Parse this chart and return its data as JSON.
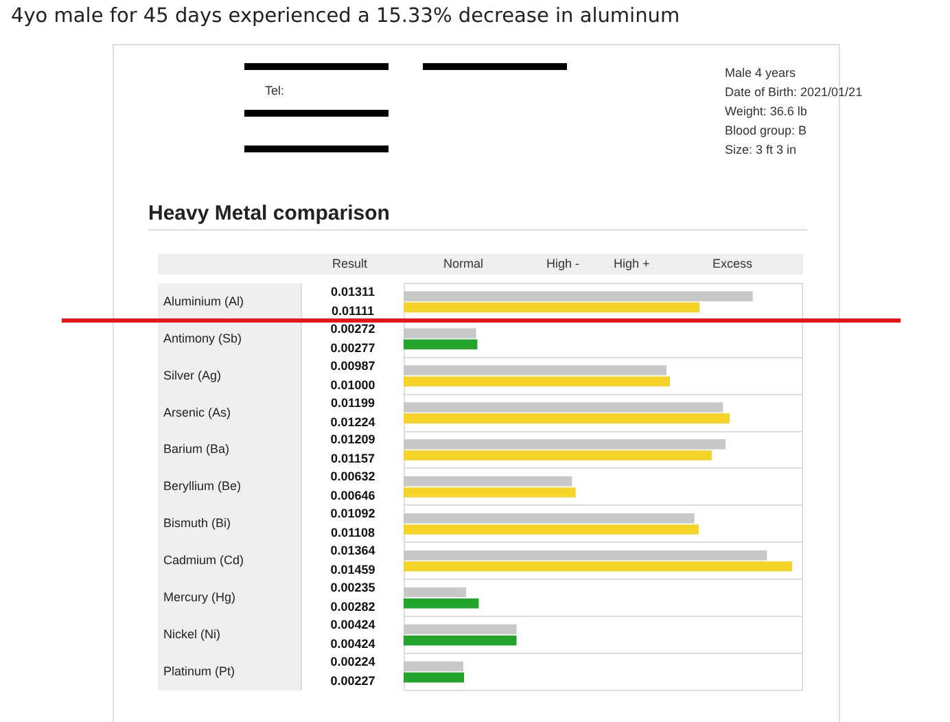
{
  "chart_data": {
    "type": "bar",
    "orientation": "horizontal",
    "title": "4yo male for 45 days experienced a 15.33% decrease in aluminum",
    "subtitle": "Heavy Metal comparison",
    "annotations": [
      "Tel:",
      "Male 4 years",
      "Date of Birth: 2021/01/21",
      "Weight: 36.6 lb",
      "Blood group: B",
      "Size: 3 ft 3 in",
      "Result",
      "Normal",
      "High -",
      "High +",
      "Excess"
    ],
    "categories": [
      "Aluminium (Al)",
      "Antimony (Sb)",
      "Silver (Ag)",
      "Arsenic (As)",
      "Barium (Ba)",
      "Beryllium (Be)",
      "Bismuth (Bi)",
      "Cadmium (Cd)",
      "Mercury (Hg)",
      "Nickel (Ni)",
      "Platinum (Pt)"
    ],
    "series": [
      {
        "color": "#c8c8c8",
        "values": [
          0.01311,
          0.00272,
          0.00987,
          0.01199,
          0.01209,
          0.00632,
          0.01092,
          0.01364,
          0.00235,
          0.00424,
          0.00224
        ],
        "value_labels": [
          "0.01311",
          "0.00272",
          "0.00987",
          "0.01199",
          "0.01209",
          "0.00632",
          "0.01092",
          "0.01364",
          "0.00235",
          "0.00424",
          "0.00224"
        ]
      },
      {
        "colors": [
          "#f5d327",
          "#22a52a",
          "#f5d327",
          "#f5d327",
          "#f5d327",
          "#f5d327",
          "#f5d327",
          "#f5d327",
          "#22a52a",
          "#22a52a",
          "#22a52a"
        ],
        "values": [
          0.01111,
          0.00277,
          0.01,
          0.01224,
          0.01157,
          0.00646,
          0.01108,
          0.01459,
          0.00282,
          0.00424,
          0.00227
        ],
        "value_labels": [
          "0.01111",
          "0.00277",
          "0.01000",
          "0.01224",
          "0.01157",
          "0.00646",
          "0.01108",
          "0.01459",
          "0.00282",
          "0.00424",
          "0.00227"
        ]
      }
    ],
    "grid": "y",
    "legend": false
  }
}
